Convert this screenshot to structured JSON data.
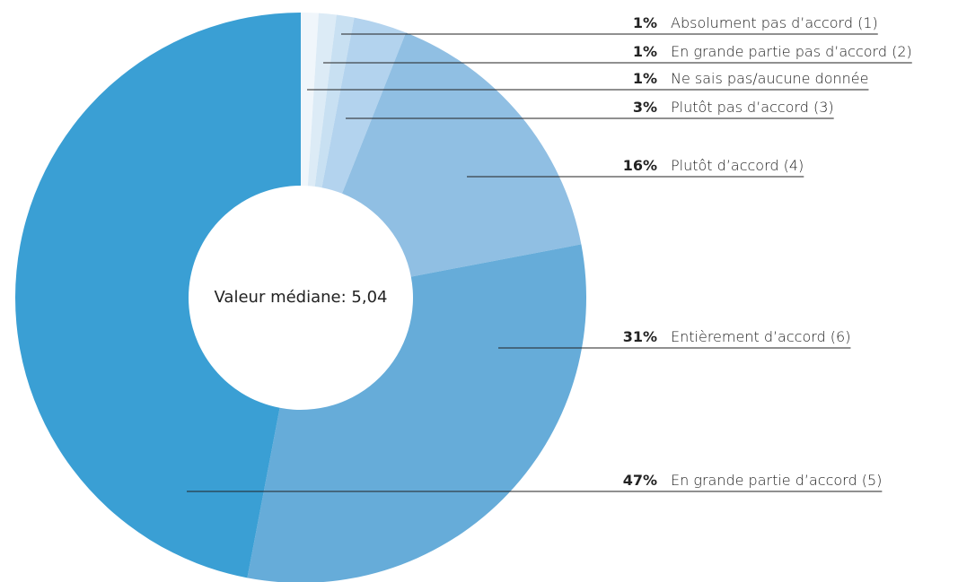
{
  "chart_data": {
    "type": "donut",
    "center_label": "Valeur médiane: 5,04",
    "categories": [
      "Absolument pas d’accord (1)",
      "En grande partie pas d’accord (2)",
      "Ne sais pas/aucune donnée",
      "Plutôt pas d’accord (3)",
      "Plutôt d’accord (4)",
      "Entièrement d’accord (6)",
      "En grande partie d’accord (5)"
    ],
    "values": [
      1,
      1,
      1,
      3,
      16,
      31,
      47
    ],
    "value_labels": [
      "1%",
      "1%",
      "1%",
      "3%",
      "16%",
      "31%",
      "47%"
    ],
    "colors": [
      "#f0f6fb",
      "#dcebf6",
      "#c8e0f2",
      "#b3d3ee",
      "#90bfe3",
      "#66acd9",
      "#3a9fd4"
    ]
  }
}
